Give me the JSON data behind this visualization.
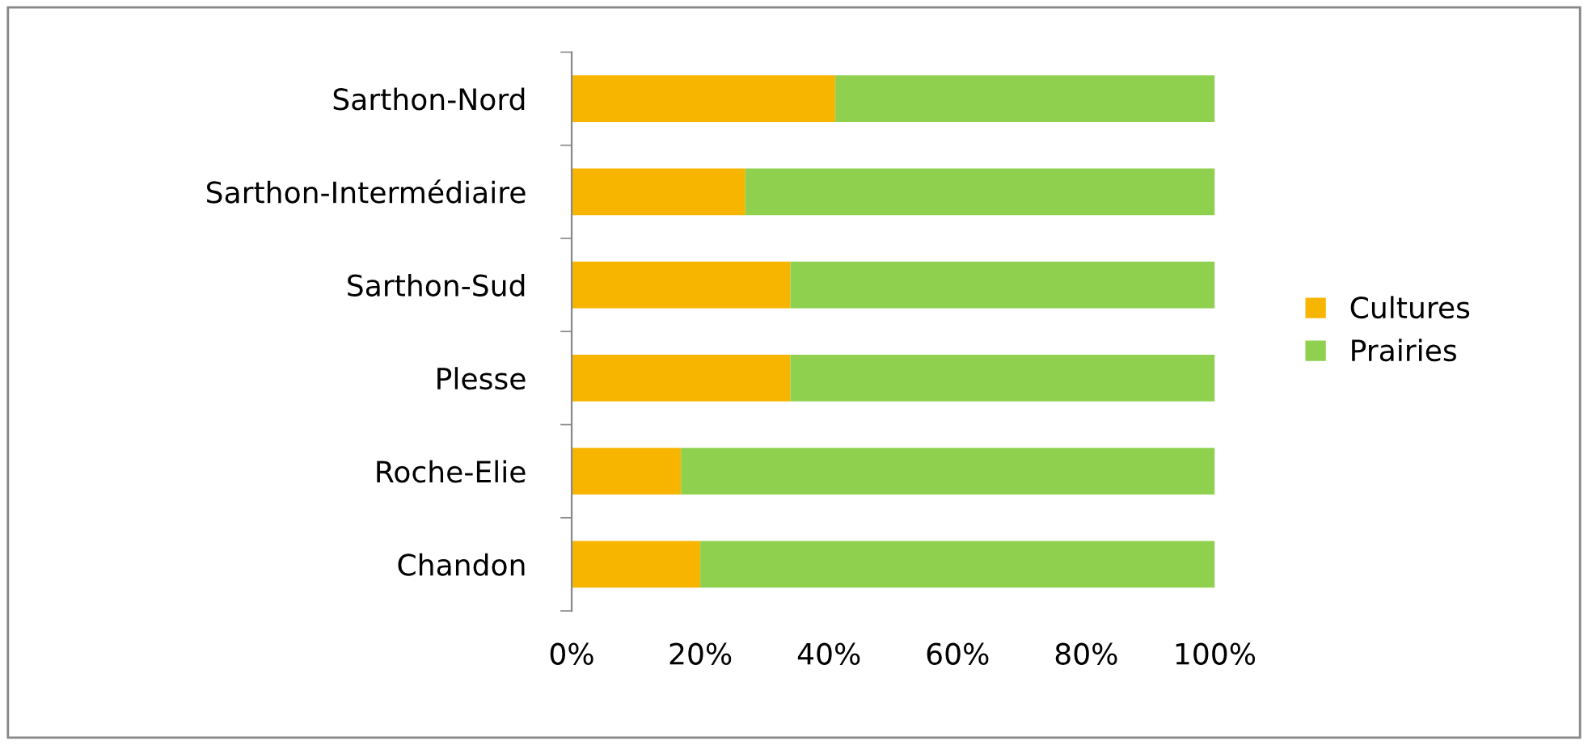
{
  "chart_data": {
    "type": "bar",
    "orientation": "horizontal",
    "stacked": true,
    "categories": [
      "Sarthon-Nord",
      "Sarthon-Intermédiaire",
      "Sarthon-Sud",
      "Plesse",
      "Roche-Elie",
      "Chandon"
    ],
    "series": [
      {
        "name": "Cultures",
        "color": "#f7b500",
        "values": [
          41,
          27,
          34,
          34,
          17,
          20
        ]
      },
      {
        "name": "Prairies",
        "color": "#8fd14f",
        "values": [
          59,
          73,
          66,
          66,
          83,
          80
        ]
      }
    ],
    "xlim": [
      0,
      100
    ],
    "xticks": [
      {
        "value": 0,
        "label": "0%"
      },
      {
        "value": 20,
        "label": "20%"
      },
      {
        "value": 40,
        "label": "40%"
      },
      {
        "value": 60,
        "label": "60%"
      },
      {
        "value": 80,
        "label": "80%"
      },
      {
        "value": 100,
        "label": "100%"
      }
    ],
    "grid": false,
    "legend": "right"
  }
}
